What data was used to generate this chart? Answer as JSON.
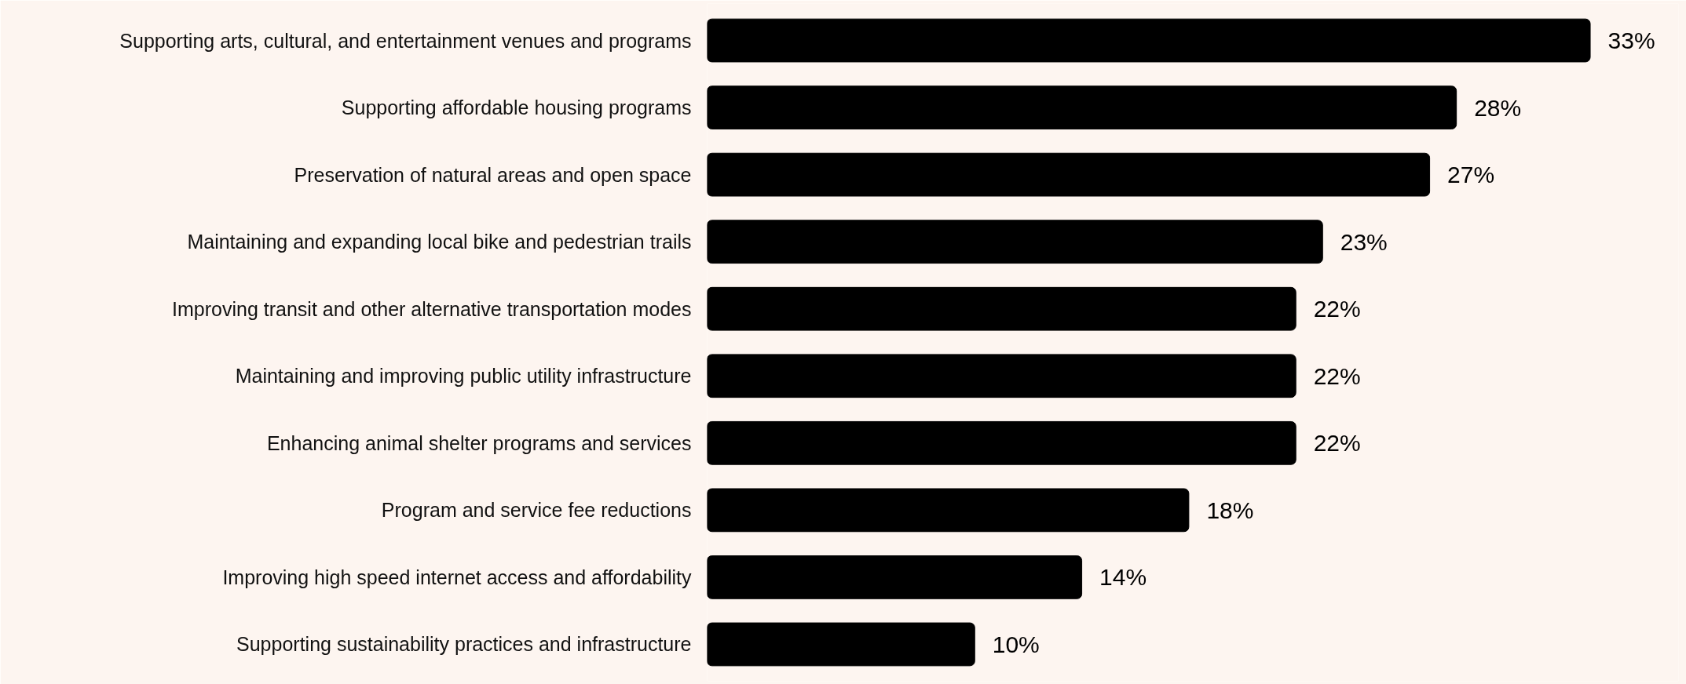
{
  "chart_data": {
    "type": "bar",
    "orientation": "horizontal",
    "grid": false,
    "categories": [
      "Supporting arts, cultural, and entertainment venues and programs",
      "Supporting affordable housing programs",
      "Preservation of natural areas and open space",
      "Maintaining and expanding local bike and pedestrian trails",
      "Improving transit and other alternative transportation modes",
      "Maintaining and improving public utility infrastructure",
      "Enhancing animal shelter programs and services",
      "Program and service fee reductions",
      "Improving high speed internet access and affordability",
      "Supporting sustainability practices and infrastructure"
    ],
    "values": [
      33,
      28,
      27,
      23,
      22,
      22,
      22,
      18,
      14,
      10
    ],
    "value_labels": [
      "33%",
      "28%",
      "27%",
      "23%",
      "22%",
      "22%",
      "22%",
      "18%",
      "14%",
      "10%"
    ],
    "color": "#000000"
  }
}
